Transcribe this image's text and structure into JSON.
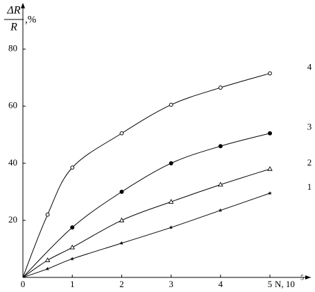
{
  "chart_data": {
    "type": "line",
    "y_label": {
      "numerator": "ΔR",
      "denominator": "R",
      "unit": ",%"
    },
    "x_label": {
      "text": "N, 10",
      "exponent": "5"
    },
    "xlim": [
      0,
      5.8
    ],
    "xticks": [
      0,
      1,
      2,
      3,
      4,
      5
    ],
    "ylim": [
      0,
      96
    ],
    "yticks": [
      20,
      40,
      60,
      80
    ],
    "color": "#000000",
    "series": [
      {
        "name": "1",
        "marker": "star",
        "x": [
          0,
          0.5,
          1,
          2,
          3,
          4,
          5
        ],
        "values": [
          0,
          3,
          6.5,
          12,
          17.5,
          23.5,
          29.5
        ]
      },
      {
        "name": "2",
        "marker": "triangle-open",
        "x": [
          0,
          0.5,
          1,
          2,
          3,
          4,
          5
        ],
        "values": [
          0,
          6,
          10.5,
          20,
          26.5,
          32.5,
          38
        ]
      },
      {
        "name": "3",
        "marker": "circle-filled",
        "x": [
          0,
          1,
          2,
          3,
          4,
          5
        ],
        "values": [
          0,
          17.5,
          30,
          40,
          46,
          50.5
        ]
      },
      {
        "name": "4",
        "marker": "circle-open",
        "x": [
          0,
          0.5,
          1,
          2,
          3,
          4,
          5
        ],
        "values": [
          0,
          22,
          38.5,
          50.5,
          60.5,
          66.5,
          71.5
        ]
      }
    ]
  }
}
